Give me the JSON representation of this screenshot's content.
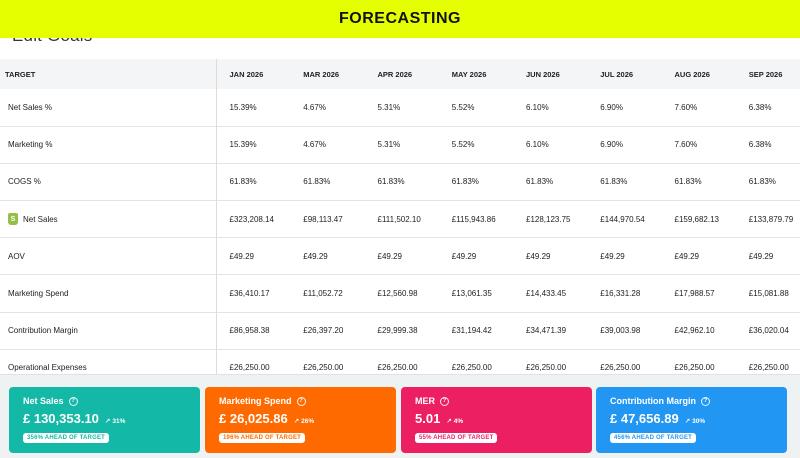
{
  "page_heading": "Edit Goals",
  "banner": {
    "title": "FORECASTING",
    "color": "#e6ff00"
  },
  "table": {
    "label_header": "TARGET",
    "months": [
      "JAN 2026",
      "MAR 2026",
      "APR 2026",
      "MAY 2026",
      "JUN 2026",
      "JUL 2026",
      "AUG 2026",
      "SEP 2026"
    ],
    "rows": [
      {
        "label": "Net Sales %",
        "icon": "",
        "values": [
          "15.39%",
          "4.67%",
          "5.31%",
          "5.52%",
          "6.10%",
          "6.90%",
          "7.60%",
          "6.38%"
        ]
      },
      {
        "label": "Marketing %",
        "icon": "",
        "values": [
          "15.39%",
          "4.67%",
          "5.31%",
          "5.52%",
          "6.10%",
          "6.90%",
          "7.60%",
          "6.38%"
        ]
      },
      {
        "label": "COGS %",
        "icon": "",
        "values": [
          "61.83%",
          "61.83%",
          "61.83%",
          "61.83%",
          "61.83%",
          "61.83%",
          "61.83%",
          "61.83%"
        ]
      },
      {
        "label": "Net Sales",
        "icon": "shopify-bag-icon",
        "values": [
          "£323,208.14",
          "£98,113.47",
          "£111,502.10",
          "£115,943.86",
          "£128,123.75",
          "£144,970.54",
          "£159,682.13",
          "£133,879.79"
        ]
      },
      {
        "label": "AOV",
        "icon": "",
        "values": [
          "£49.29",
          "£49.29",
          "£49.29",
          "£49.29",
          "£49.29",
          "£49.29",
          "£49.29",
          "£49.29"
        ]
      },
      {
        "label": "Marketing Spend",
        "icon": "",
        "values": [
          "£36,410.17",
          "£11,052.72",
          "£12,560.98",
          "£13,061.35",
          "£14,433.45",
          "£16,331.28",
          "£17,988.57",
          "£15,081.88"
        ]
      },
      {
        "label": "Contribution Margin",
        "icon": "",
        "values": [
          "£86,958.38",
          "£26,397.20",
          "£29,999.38",
          "£31,194.42",
          "£34,471.39",
          "£39,003.98",
          "£42,962.10",
          "£36,020.04"
        ]
      },
      {
        "label": "Operational Expenses",
        "icon": "",
        "values": [
          "£26,250.00",
          "£26,250.00",
          "£26,250.00",
          "£26,250.00",
          "£26,250.00",
          "£26,250.00",
          "£26,250.00",
          "£26,250.00"
        ]
      }
    ]
  },
  "cards": [
    {
      "key": "net-sales",
      "title": "Net Sales",
      "value": "£ 130,353.10",
      "change": "31%",
      "badge": "356% AHEAD OF TARGET",
      "color": "#14b8a6"
    },
    {
      "key": "marketing-spend",
      "title": "Marketing Spend",
      "value": "£ 26,025.86",
      "change": "26%",
      "badge": "196% AHEAD OF TARGET",
      "color": "#ff6a00"
    },
    {
      "key": "mer",
      "title": "MER",
      "value": "5.01",
      "change": "4%",
      "badge": "55% AHEAD OF TARGET",
      "color": "#ec1f63"
    },
    {
      "key": "contribution-margin",
      "title": "Contribution Margin",
      "value": "£ 47,656.89",
      "change": "30%",
      "badge": "456% AHEAD OF TARGET",
      "color": "#2196f3"
    }
  ]
}
